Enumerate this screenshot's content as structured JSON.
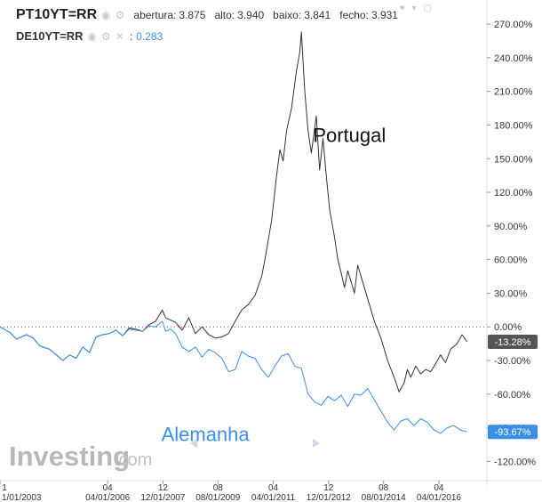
{
  "header": {
    "symbol_main": "PT10YT=RR",
    "open_label": "abertura:",
    "open_value": "3.875",
    "high_label": "alto:",
    "high_value": "3.940",
    "low_label": "baixo:",
    "low_value": "3.841",
    "close_label": "fecho:",
    "close_value": "3.931",
    "symbol_compare": "DE10YT=RR",
    "compare_sep": ":",
    "compare_value": "0.283",
    "icons": [
      "eye-icon",
      "gear-icon",
      "close-icon",
      "heart-icon",
      "chevron-down-icon"
    ]
  },
  "colors": {
    "portugal": "#333333",
    "germany": "#3a8ee6",
    "zero_line": "#e03030",
    "axis_text": "#333333"
  },
  "chart_data": {
    "type": "line",
    "ylim": [
      -134,
      282
    ],
    "y_ticks": [
      "270.00%",
      "240.00%",
      "210.00%",
      "180.00%",
      "150.00%",
      "120.00%",
      "90.00%",
      "60.00%",
      "30.00%",
      "0.00%",
      "-30.00%",
      "-60.00%",
      "-90.00%",
      "-120.00%"
    ],
    "y_tick_values": [
      270,
      240,
      210,
      180,
      150,
      120,
      90,
      60,
      30,
      0,
      -30,
      -60,
      -90,
      -120
    ],
    "x_ticks": [
      {
        "top": "1",
        "bottom": "1/01/2003",
        "t": 0
      },
      {
        "top": "04",
        "bottom": "04/01/2006",
        "t": 3.25
      },
      {
        "top": "12",
        "bottom": "12/01/2007",
        "t": 4.92
      },
      {
        "top": "08",
        "bottom": "08/01/2009",
        "t": 6.58
      },
      {
        "top": "04",
        "bottom": "04/01/2011",
        "t": 8.25
      },
      {
        "top": "12",
        "bottom": "12/01/2012",
        "t": 9.92
      },
      {
        "top": "08",
        "bottom": "08/01/2014",
        "t": 11.58
      },
      {
        "top": "04",
        "bottom": "04/01/2016",
        "t": 13.25
      }
    ],
    "t_range": [
      0,
      14.7
    ],
    "reference_line": 0,
    "annotations": [
      {
        "text": "Portugal",
        "color": "#111111",
        "t": 10.55,
        "y": 165,
        "size": 22
      },
      {
        "text": "Alemanha",
        "color": "#3a8ee6",
        "t": 6.2,
        "y": -102,
        "size": 22
      }
    ],
    "end_labels": [
      {
        "text": "-13.28%",
        "value": -13.28,
        "bg": "#555555"
      },
      {
        "text": "-93.67%",
        "value": -93.67,
        "bg": "#3a8ee6"
      }
    ],
    "series": [
      {
        "name": "PT10YT=RR",
        "color": "#333333",
        "points": [
          [
            0,
            0
          ],
          [
            0.3,
            -5
          ],
          [
            0.5,
            -11
          ],
          [
            0.8,
            -7
          ],
          [
            1.0,
            -10
          ],
          [
            1.2,
            -17
          ],
          [
            1.5,
            -20
          ],
          [
            1.7,
            -25
          ],
          [
            1.9,
            -30
          ],
          [
            2.1,
            -25
          ],
          [
            2.3,
            -28
          ],
          [
            2.5,
            -18
          ],
          [
            2.7,
            -23
          ],
          [
            2.9,
            -9
          ],
          [
            3.1,
            -7
          ],
          [
            3.3,
            -6
          ],
          [
            3.5,
            -3
          ],
          [
            3.7,
            -8
          ],
          [
            3.9,
            -1
          ],
          [
            4.1,
            -2
          ],
          [
            4.3,
            -4
          ],
          [
            4.5,
            2
          ],
          [
            4.7,
            5
          ],
          [
            4.9,
            15
          ],
          [
            5.0,
            8
          ],
          [
            5.15,
            6
          ],
          [
            5.3,
            4
          ],
          [
            5.5,
            -3
          ],
          [
            5.7,
            8
          ],
          [
            5.9,
            -6
          ],
          [
            6.1,
            0
          ],
          [
            6.3,
            -7
          ],
          [
            6.5,
            -10
          ],
          [
            6.7,
            -9
          ],
          [
            6.9,
            -6
          ],
          [
            7.1,
            5
          ],
          [
            7.3,
            15
          ],
          [
            7.5,
            20
          ],
          [
            7.7,
            28
          ],
          [
            7.9,
            45
          ],
          [
            8.0,
            60
          ],
          [
            8.2,
            95
          ],
          [
            8.35,
            135
          ],
          [
            8.45,
            158
          ],
          [
            8.55,
            148
          ],
          [
            8.65,
            175
          ],
          [
            8.8,
            195
          ],
          [
            8.95,
            228
          ],
          [
            9.05,
            245
          ],
          [
            9.1,
            263
          ],
          [
            9.2,
            210
          ],
          [
            9.3,
            175
          ],
          [
            9.4,
            155
          ],
          [
            9.55,
            188
          ],
          [
            9.65,
            140
          ],
          [
            9.75,
            168
          ],
          [
            9.85,
            135
          ],
          [
            9.95,
            105
          ],
          [
            10.1,
            80
          ],
          [
            10.2,
            60
          ],
          [
            10.3,
            48
          ],
          [
            10.4,
            35
          ],
          [
            10.5,
            50
          ],
          [
            10.6,
            40
          ],
          [
            10.7,
            30
          ],
          [
            10.8,
            55
          ],
          [
            10.95,
            40
          ],
          [
            11.1,
            25
          ],
          [
            11.3,
            5
          ],
          [
            11.5,
            -10
          ],
          [
            11.7,
            -30
          ],
          [
            11.9,
            -45
          ],
          [
            12.05,
            -58
          ],
          [
            12.2,
            -50
          ],
          [
            12.3,
            -38
          ],
          [
            12.4,
            -45
          ],
          [
            12.55,
            -35
          ],
          [
            12.7,
            -42
          ],
          [
            12.85,
            -38
          ],
          [
            13.0,
            -40
          ],
          [
            13.15,
            -33
          ],
          [
            13.3,
            -25
          ],
          [
            13.45,
            -32
          ],
          [
            13.6,
            -20
          ],
          [
            13.8,
            -15
          ],
          [
            13.95,
            -7
          ],
          [
            14.1,
            -13.28
          ]
        ]
      },
      {
        "name": "DE10YT=RR",
        "color": "#3a8ee6",
        "points": [
          [
            0,
            0
          ],
          [
            0.3,
            -5
          ],
          [
            0.5,
            -11
          ],
          [
            0.8,
            -7
          ],
          [
            1.0,
            -10
          ],
          [
            1.2,
            -17
          ],
          [
            1.5,
            -20
          ],
          [
            1.7,
            -25
          ],
          [
            1.9,
            -30
          ],
          [
            2.1,
            -25
          ],
          [
            2.3,
            -28
          ],
          [
            2.5,
            -18
          ],
          [
            2.7,
            -23
          ],
          [
            2.9,
            -9
          ],
          [
            3.1,
            -7
          ],
          [
            3.3,
            -6
          ],
          [
            3.5,
            -3
          ],
          [
            3.7,
            -8
          ],
          [
            3.9,
            -2
          ],
          [
            4.1,
            -3
          ],
          [
            4.3,
            -4
          ],
          [
            4.5,
            1
          ],
          [
            4.7,
            0
          ],
          [
            4.9,
            5
          ],
          [
            5.0,
            -4
          ],
          [
            5.15,
            -2
          ],
          [
            5.3,
            -6
          ],
          [
            5.5,
            -18
          ],
          [
            5.7,
            -22
          ],
          [
            5.9,
            -18
          ],
          [
            6.1,
            -27
          ],
          [
            6.3,
            -20
          ],
          [
            6.5,
            -23
          ],
          [
            6.7,
            -28
          ],
          [
            6.9,
            -40
          ],
          [
            7.1,
            -38
          ],
          [
            7.3,
            -22
          ],
          [
            7.5,
            -26
          ],
          [
            7.7,
            -28
          ],
          [
            7.9,
            -38
          ],
          [
            8.1,
            -45
          ],
          [
            8.3,
            -35
          ],
          [
            8.5,
            -26
          ],
          [
            8.7,
            -24
          ],
          [
            8.9,
            -35
          ],
          [
            9.1,
            -37
          ],
          [
            9.3,
            -60
          ],
          [
            9.5,
            -67
          ],
          [
            9.7,
            -70
          ],
          [
            9.9,
            -62
          ],
          [
            10.1,
            -66
          ],
          [
            10.3,
            -61
          ],
          [
            10.5,
            -71
          ],
          [
            10.7,
            -60
          ],
          [
            10.9,
            -61
          ],
          [
            11.1,
            -55
          ],
          [
            11.3,
            -65
          ],
          [
            11.5,
            -75
          ],
          [
            11.7,
            -85
          ],
          [
            11.9,
            -92
          ],
          [
            12.1,
            -84
          ],
          [
            12.3,
            -82
          ],
          [
            12.5,
            -88
          ],
          [
            12.7,
            -82
          ],
          [
            12.9,
            -85
          ],
          [
            13.1,
            -92
          ],
          [
            13.3,
            -95
          ],
          [
            13.5,
            -90
          ],
          [
            13.7,
            -88
          ],
          [
            13.9,
            -92
          ],
          [
            14.1,
            -93.67
          ]
        ]
      }
    ]
  }
}
